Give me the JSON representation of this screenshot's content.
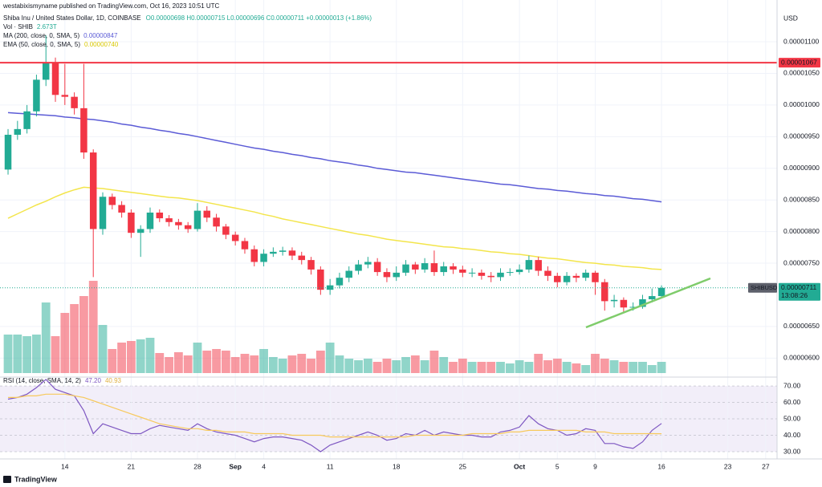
{
  "header": {
    "publisher": "westabixismyname published on TradingView.com, Oct 16, 2023 10:51 UTC",
    "symbol": "Shiba Inu / United States Dollar, 1D, COINBASE",
    "ohlc": "O0.00000698 H0.00000715 L0.00000696 C0.00000711 +0.00000013 (+1.86%)",
    "vol_label": "Vol · SHIB",
    "vol_value": "2.673T",
    "ma_label": "MA (200, close, 0, SMA, 5)",
    "ma_value": "0.00000847",
    "ema_label": "EMA (50, close, 0, SMA, 5)",
    "ema_value": "0.00000740"
  },
  "chart_data": [
    {
      "type": "candlestick",
      "currency": "USD",
      "up_color": "#22ab94",
      "down_color": "#f23645",
      "xlim": [
        -0.85,
        81.2
      ],
      "xticks": [
        {
          "value": 6,
          "label": "14"
        },
        {
          "value": 13,
          "label": "21"
        },
        {
          "value": 20,
          "label": "28"
        },
        {
          "value": 24,
          "label": "Sep"
        },
        {
          "value": 27,
          "label": "4"
        },
        {
          "value": 34,
          "label": "11"
        },
        {
          "value": 41,
          "label": "18"
        },
        {
          "value": 48,
          "label": "25"
        },
        {
          "value": 54,
          "label": "Oct"
        },
        {
          "value": 58,
          "label": "5"
        },
        {
          "value": 62,
          "label": "9"
        },
        {
          "value": 69,
          "label": "16"
        },
        {
          "value": 76,
          "label": "23"
        },
        {
          "value": 80,
          "label": "27"
        }
      ],
      "ylim": [
        5.7e-06,
        1.166e-05
      ],
      "yticks": [
        {
          "value": 1.1e-05,
          "label": "0.00001100"
        },
        {
          "value": 1.05e-05,
          "label": "0.00001050"
        },
        {
          "value": 1e-05,
          "label": "0.00001000"
        },
        {
          "value": 9.5e-06,
          "label": "0.00000950"
        },
        {
          "value": 9e-06,
          "label": "0.00000900"
        },
        {
          "value": 8.5e-06,
          "label": "0.00000850"
        },
        {
          "value": 8e-06,
          "label": "0.00000800"
        },
        {
          "value": 7.5e-06,
          "label": "0.00000750"
        },
        {
          "value": 6.5e-06,
          "label": "0.00000650"
        },
        {
          "value": 6e-06,
          "label": "0.00000600"
        }
      ],
      "open": [
        8.98e-06,
        9.53e-06,
        9.62e-06,
        9.9e-06,
        1.04e-05,
        1.067e-05,
        1.016e-05,
        1.013e-05,
        9.95e-06,
        9.25e-06,
        8.04e-06,
        8.55e-06,
        8.42e-06,
        8.3e-06,
        7.98e-06,
        8.04e-06,
        8.3e-06,
        8.21e-06,
        8.15e-06,
        8.1e-06,
        8.04e-06,
        8.33e-06,
        8.22e-06,
        8.08e-06,
        7.95e-06,
        7.85e-06,
        7.72e-06,
        7.52e-06,
        7.65e-06,
        7.68e-06,
        7.7e-06,
        7.62e-06,
        7.55e-06,
        7.4e-06,
        7.08e-06,
        7.15e-06,
        7.27e-06,
        7.38e-06,
        7.48e-06,
        7.52e-06,
        7.36e-06,
        7.28e-06,
        7.35e-06,
        7.48e-06,
        7.4e-06,
        7.5e-06,
        7.36e-06,
        7.45e-06,
        7.4e-06,
        7.35e-06,
        7.35e-06,
        7.3e-06,
        7.28e-06,
        7.35e-06,
        7.36e-06,
        7.4e-06,
        7.55e-06,
        7.38e-06,
        7.3e-06,
        7.2e-06,
        7.3e-06,
        7.27e-06,
        7.35e-06,
        7.2e-06,
        6.9e-06,
        6.92e-06,
        6.8e-06,
        6.81e-06,
        6.93e-06,
        6.98e-06
      ],
      "high": [
        9.62e-06,
        9.75e-06,
        1e-05,
        1.048e-05,
        1.11e-05,
        1.075e-05,
        1.065e-05,
        1.02e-05,
        1.065e-05,
        9.3e-06,
        8.62e-06,
        8.6e-06,
        8.48e-06,
        8.35e-06,
        8.1e-06,
        8.38e-06,
        8.35e-06,
        8.26e-06,
        8.2e-06,
        8.15e-06,
        8.45e-06,
        8.4e-06,
        8.28e-06,
        8.12e-06,
        8e-06,
        7.9e-06,
        7.78e-06,
        7.72e-06,
        7.75e-06,
        7.76e-06,
        7.75e-06,
        7.68e-06,
        7.6e-06,
        7.45e-06,
        7.25e-06,
        7.35e-06,
        7.45e-06,
        7.55e-06,
        7.6e-06,
        7.58e-06,
        7.42e-06,
        7.45e-06,
        7.55e-06,
        7.52e-06,
        7.58e-06,
        7.7e-06,
        7.52e-06,
        7.5e-06,
        7.46e-06,
        7.42e-06,
        7.4e-06,
        7.36e-06,
        7.42e-06,
        7.42e-06,
        7.48e-06,
        7.62e-06,
        7.6e-06,
        7.45e-06,
        7.35e-06,
        7.36e-06,
        7.34e-06,
        7.4e-06,
        7.38e-06,
        7.25e-06,
        7e-06,
        6.96e-06,
        6.88e-06,
        7e-06,
        7.1e-06,
        7.15e-06
      ],
      "low": [
        8.9e-06,
        9.45e-06,
        9.55e-06,
        9.82e-06,
        1.03e-05,
        1.005e-05,
        1e-05,
        9.85e-06,
        9.15e-06,
        7.28e-06,
        7.95e-06,
        8.35e-06,
        8.22e-06,
        7.9e-06,
        7.6e-06,
        7.98e-06,
        8.15e-06,
        8.08e-06,
        8.03e-06,
        7.98e-06,
        8e-06,
        8.15e-06,
        8e-06,
        7.88e-06,
        7.78e-06,
        7.65e-06,
        7.45e-06,
        7.45e-06,
        7.6e-06,
        7.62e-06,
        7.55e-06,
        7.48e-06,
        7.32e-06,
        7e-06,
        7e-06,
        7.1e-06,
        7.2e-06,
        7.32e-06,
        7.42e-06,
        7.3e-06,
        7.2e-06,
        7.22e-06,
        7.3e-06,
        7.33e-06,
        7.35e-06,
        7.3e-06,
        7.3e-06,
        7.33e-06,
        7.28e-06,
        7.28e-06,
        7.24e-06,
        7.2e-06,
        7.22e-06,
        7.3e-06,
        7.32e-06,
        7.35e-06,
        7.3e-06,
        7.22e-06,
        7.12e-06,
        7.15e-06,
        7.2e-06,
        7.22e-06,
        7e-06,
        6.75e-06,
        6.8e-06,
        6.72e-06,
        6.75e-06,
        6.78e-06,
        6.88e-06,
        6.96e-06
      ],
      "close": [
        9.53e-06,
        9.62e-06,
        9.9e-06,
        1.04e-05,
        1.067e-05,
        1.016e-05,
        1.013e-05,
        9.95e-06,
        9.25e-06,
        8.04e-06,
        8.55e-06,
        8.42e-06,
        8.3e-06,
        7.98e-06,
        8.04e-06,
        8.3e-06,
        8.21e-06,
        8.15e-06,
        8.1e-06,
        8.04e-06,
        8.33e-06,
        8.22e-06,
        8.08e-06,
        7.95e-06,
        7.85e-06,
        7.72e-06,
        7.52e-06,
        7.65e-06,
        7.68e-06,
        7.7e-06,
        7.62e-06,
        7.55e-06,
        7.4e-06,
        7.08e-06,
        7.15e-06,
        7.27e-06,
        7.38e-06,
        7.48e-06,
        7.52e-06,
        7.36e-06,
        7.28e-06,
        7.35e-06,
        7.48e-06,
        7.4e-06,
        7.5e-06,
        7.36e-06,
        7.45e-06,
        7.4e-06,
        7.35e-06,
        7.35e-06,
        7.3e-06,
        7.28e-06,
        7.35e-06,
        7.36e-06,
        7.4e-06,
        7.55e-06,
        7.38e-06,
        7.3e-06,
        7.2e-06,
        7.3e-06,
        7.27e-06,
        7.35e-06,
        7.2e-06,
        6.9e-06,
        6.92e-06,
        6.8e-06,
        6.81e-06,
        6.93e-06,
        6.98e-06,
        7.11e-06
      ],
      "volume": [
        48,
        48,
        46,
        48,
        88,
        46,
        75,
        86,
        96,
        115,
        60,
        30,
        38,
        40,
        42,
        44,
        25,
        20,
        26,
        22,
        38,
        28,
        30,
        28,
        20,
        24,
        22,
        30,
        20,
        18,
        22,
        24,
        18,
        28,
        38,
        22,
        18,
        16,
        18,
        14,
        18,
        16,
        20,
        22,
        16,
        28,
        20,
        14,
        18,
        14,
        14,
        14,
        14,
        12,
        16,
        14,
        24,
        16,
        18,
        14,
        12,
        10,
        24,
        18,
        16,
        14,
        14,
        14,
        10,
        14
      ],
      "series": [
        {
          "color": "#5b5bd6",
          "values": [
            9.88e-06,
            9.87e-06,
            9.86e-06,
            9.85e-06,
            9.84e-06,
            9.83e-06,
            9.81e-06,
            9.8e-06,
            9.78e-06,
            9.77e-06,
            9.75e-06,
            9.73e-06,
            9.7e-06,
            9.68e-06,
            9.65e-06,
            9.63e-06,
            9.6e-06,
            9.58e-06,
            9.55e-06,
            9.53e-06,
            9.5e-06,
            9.47e-06,
            9.44e-06,
            9.41e-06,
            9.38e-06,
            9.35e-06,
            9.32e-06,
            9.3e-06,
            9.27e-06,
            9.25e-06,
            9.22e-06,
            9.2e-06,
            9.17e-06,
            9.15e-06,
            9.12e-06,
            9.1e-06,
            9.08e-06,
            9.05e-06,
            9.03e-06,
            9e-06,
            8.98e-06,
            8.96e-06,
            8.94e-06,
            8.93e-06,
            8.91e-06,
            8.89e-06,
            8.87e-06,
            8.85e-06,
            8.83e-06,
            8.81e-06,
            8.79e-06,
            8.77e-06,
            8.75e-06,
            8.74e-06,
            8.72e-06,
            8.7e-06,
            8.68e-06,
            8.67e-06,
            8.65e-06,
            8.64e-06,
            8.62e-06,
            8.6e-06,
            8.59e-06,
            8.57e-06,
            8.56e-06,
            8.54e-06,
            8.52e-06,
            8.51e-06,
            8.49e-06,
            8.47e-06
          ]
        },
        {
          "color": "#f3e54b",
          "values": [
            8.21e-06,
            8.28e-06,
            8.35e-06,
            8.42e-06,
            8.48e-06,
            8.55e-06,
            8.61e-06,
            8.66e-06,
            8.7e-06,
            8.69e-06,
            8.68e-06,
            8.66e-06,
            8.64e-06,
            8.62e-06,
            8.6e-06,
            8.58e-06,
            8.56e-06,
            8.54e-06,
            8.53e-06,
            8.51e-06,
            8.49e-06,
            8.46e-06,
            8.43e-06,
            8.4e-06,
            8.37e-06,
            8.34e-06,
            8.31e-06,
            8.27e-06,
            8.24e-06,
            8.2e-06,
            8.17e-06,
            8.14e-06,
            8.11e-06,
            8.08e-06,
            8.05e-06,
            8.02e-06,
            7.99e-06,
            7.96e-06,
            7.94e-06,
            7.91e-06,
            7.88e-06,
            7.86e-06,
            7.84e-06,
            7.82e-06,
            7.8e-06,
            7.78e-06,
            7.76e-06,
            7.75e-06,
            7.73e-06,
            7.72e-06,
            7.7e-06,
            7.68e-06,
            7.67e-06,
            7.65e-06,
            7.64e-06,
            7.62e-06,
            7.6e-06,
            7.58e-06,
            7.57e-06,
            7.55e-06,
            7.53e-06,
            7.51e-06,
            7.5e-06,
            7.48e-06,
            7.47e-06,
            7.45e-06,
            7.44e-06,
            7.43e-06,
            7.41e-06,
            7.4e-06
          ]
        }
      ],
      "hline": {
        "value": 1.067e-05,
        "label": "0.00001067",
        "color": "#f23645"
      },
      "price_tag": {
        "name": "SHIBUSD",
        "label": "0.00000711",
        "countdown": "13:08:26"
      }
    },
    {
      "type": "line",
      "title": "RSI (14, close, SMA, 14, 2)",
      "value_text": "47.20",
      "ma_text": "40.93",
      "ylim": [
        26.6,
        75.4
      ],
      "yticks": [
        {
          "value": 30,
          "label": "30.00"
        },
        {
          "value": 40,
          "label": "40.00"
        },
        {
          "value": 50,
          "label": "50.00"
        },
        {
          "value": 60,
          "label": "60.00"
        },
        {
          "value": 70,
          "label": "70.00"
        }
      ],
      "series": [
        {
          "color": "#7e57c2",
          "values": [
            62,
            63,
            65,
            69,
            74,
            68,
            66,
            64,
            55,
            41,
            47,
            45,
            43,
            41,
            41,
            44,
            46,
            45,
            44,
            43,
            47,
            44,
            42,
            41,
            40,
            38,
            36,
            38,
            39,
            39,
            38,
            37,
            34,
            30,
            34,
            36,
            38,
            40,
            42,
            40,
            37,
            38,
            41,
            40,
            43,
            40,
            42,
            41,
            40,
            40,
            39,
            39,
            42,
            43,
            45,
            52,
            47,
            44,
            43,
            40,
            41,
            44,
            43,
            35,
            35,
            33,
            32,
            36,
            43,
            47.2
          ]
        },
        {
          "color": "#f7c95c",
          "values": [
            63,
            63,
            64,
            64,
            65,
            65,
            65,
            64,
            63,
            61,
            59,
            57,
            55,
            53,
            51,
            49,
            47,
            46,
            45,
            44,
            44,
            43,
            43,
            42,
            42,
            42,
            41,
            41,
            41,
            41,
            40,
            40,
            40,
            40,
            39,
            39,
            39,
            39,
            39,
            39,
            39,
            39,
            39,
            40,
            40,
            40,
            40,
            40,
            40,
            41,
            41,
            41,
            41,
            42,
            42,
            43,
            43,
            43,
            43,
            43,
            43,
            42,
            42,
            42,
            41,
            41,
            41,
            41,
            41,
            40.93
          ]
        }
      ]
    }
  ],
  "footer": "TradingView"
}
